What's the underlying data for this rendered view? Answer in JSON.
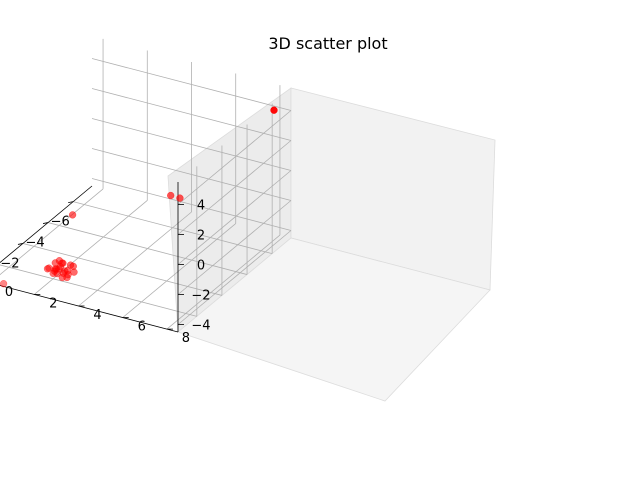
{
  "chart_data": {
    "type": "scatter",
    "title": "3D scatter plot",
    "xlabel": "",
    "ylabel": "",
    "zlabel": "",
    "xlim": [
      -7.5,
      1.5
    ],
    "ylim": [
      -0.5,
      8.5
    ],
    "zlim": [
      -4.5,
      5.5
    ],
    "xticks": [
      -6,
      -4,
      -2,
      0
    ],
    "yticks": [
      0,
      2,
      4,
      6,
      8
    ],
    "zticks": [
      -4,
      -2,
      0,
      2,
      4
    ],
    "grid": true,
    "marker_color": "#ff0000",
    "points": [
      {
        "x": -7.2,
        "y": 7.9,
        "z": 4.0
      },
      {
        "x": 1.0,
        "y": 8.3,
        "z": 4.0
      },
      {
        "x": 1.2,
        "y": 8.0,
        "z": 4.2
      },
      {
        "x": 1.3,
        "y": 0.5,
        "z": -4.5
      },
      {
        "x": -1.2,
        "y": 2.2,
        "z": -1.0
      },
      {
        "x": 0.1,
        "y": 2.5,
        "z": -3.2
      },
      {
        "x": 0.3,
        "y": 2.7,
        "z": -3.5
      },
      {
        "x": 0.0,
        "y": 2.4,
        "z": -3.3
      },
      {
        "x": 0.4,
        "y": 2.3,
        "z": -3.6
      },
      {
        "x": 0.2,
        "y": 2.9,
        "z": -3.1
      },
      {
        "x": -0.1,
        "y": 2.6,
        "z": -3.8
      },
      {
        "x": 0.5,
        "y": 2.1,
        "z": -3.4
      },
      {
        "x": 0.3,
        "y": 2.8,
        "z": -3.9
      },
      {
        "x": 0.1,
        "y": 2.2,
        "z": -3.7
      },
      {
        "x": 0.6,
        "y": 2.6,
        "z": -3.2
      },
      {
        "x": -0.2,
        "y": 2.8,
        "z": -3.5
      },
      {
        "x": 0.2,
        "y": 2.4,
        "z": -3.0
      },
      {
        "x": 0.4,
        "y": 2.9,
        "z": -3.6
      },
      {
        "x": 0.0,
        "y": 2.1,
        "z": -3.4
      },
      {
        "x": 0.5,
        "y": 2.7,
        "z": -3.8
      },
      {
        "x": 0.3,
        "y": 2.5,
        "z": -3.3
      },
      {
        "x": 0.7,
        "y": 2.4,
        "z": -3.5
      },
      {
        "x": 0.1,
        "y": 3.0,
        "z": -3.6
      },
      {
        "x": 0.2,
        "y": 2.3,
        "z": -3.9
      },
      {
        "x": 0.6,
        "y": 2.8,
        "z": -3.4
      },
      {
        "x": 0.9,
        "y": 2.6,
        "z": -3.0
      },
      {
        "x": 0.8,
        "y": 2.2,
        "z": -3.2
      }
    ]
  }
}
